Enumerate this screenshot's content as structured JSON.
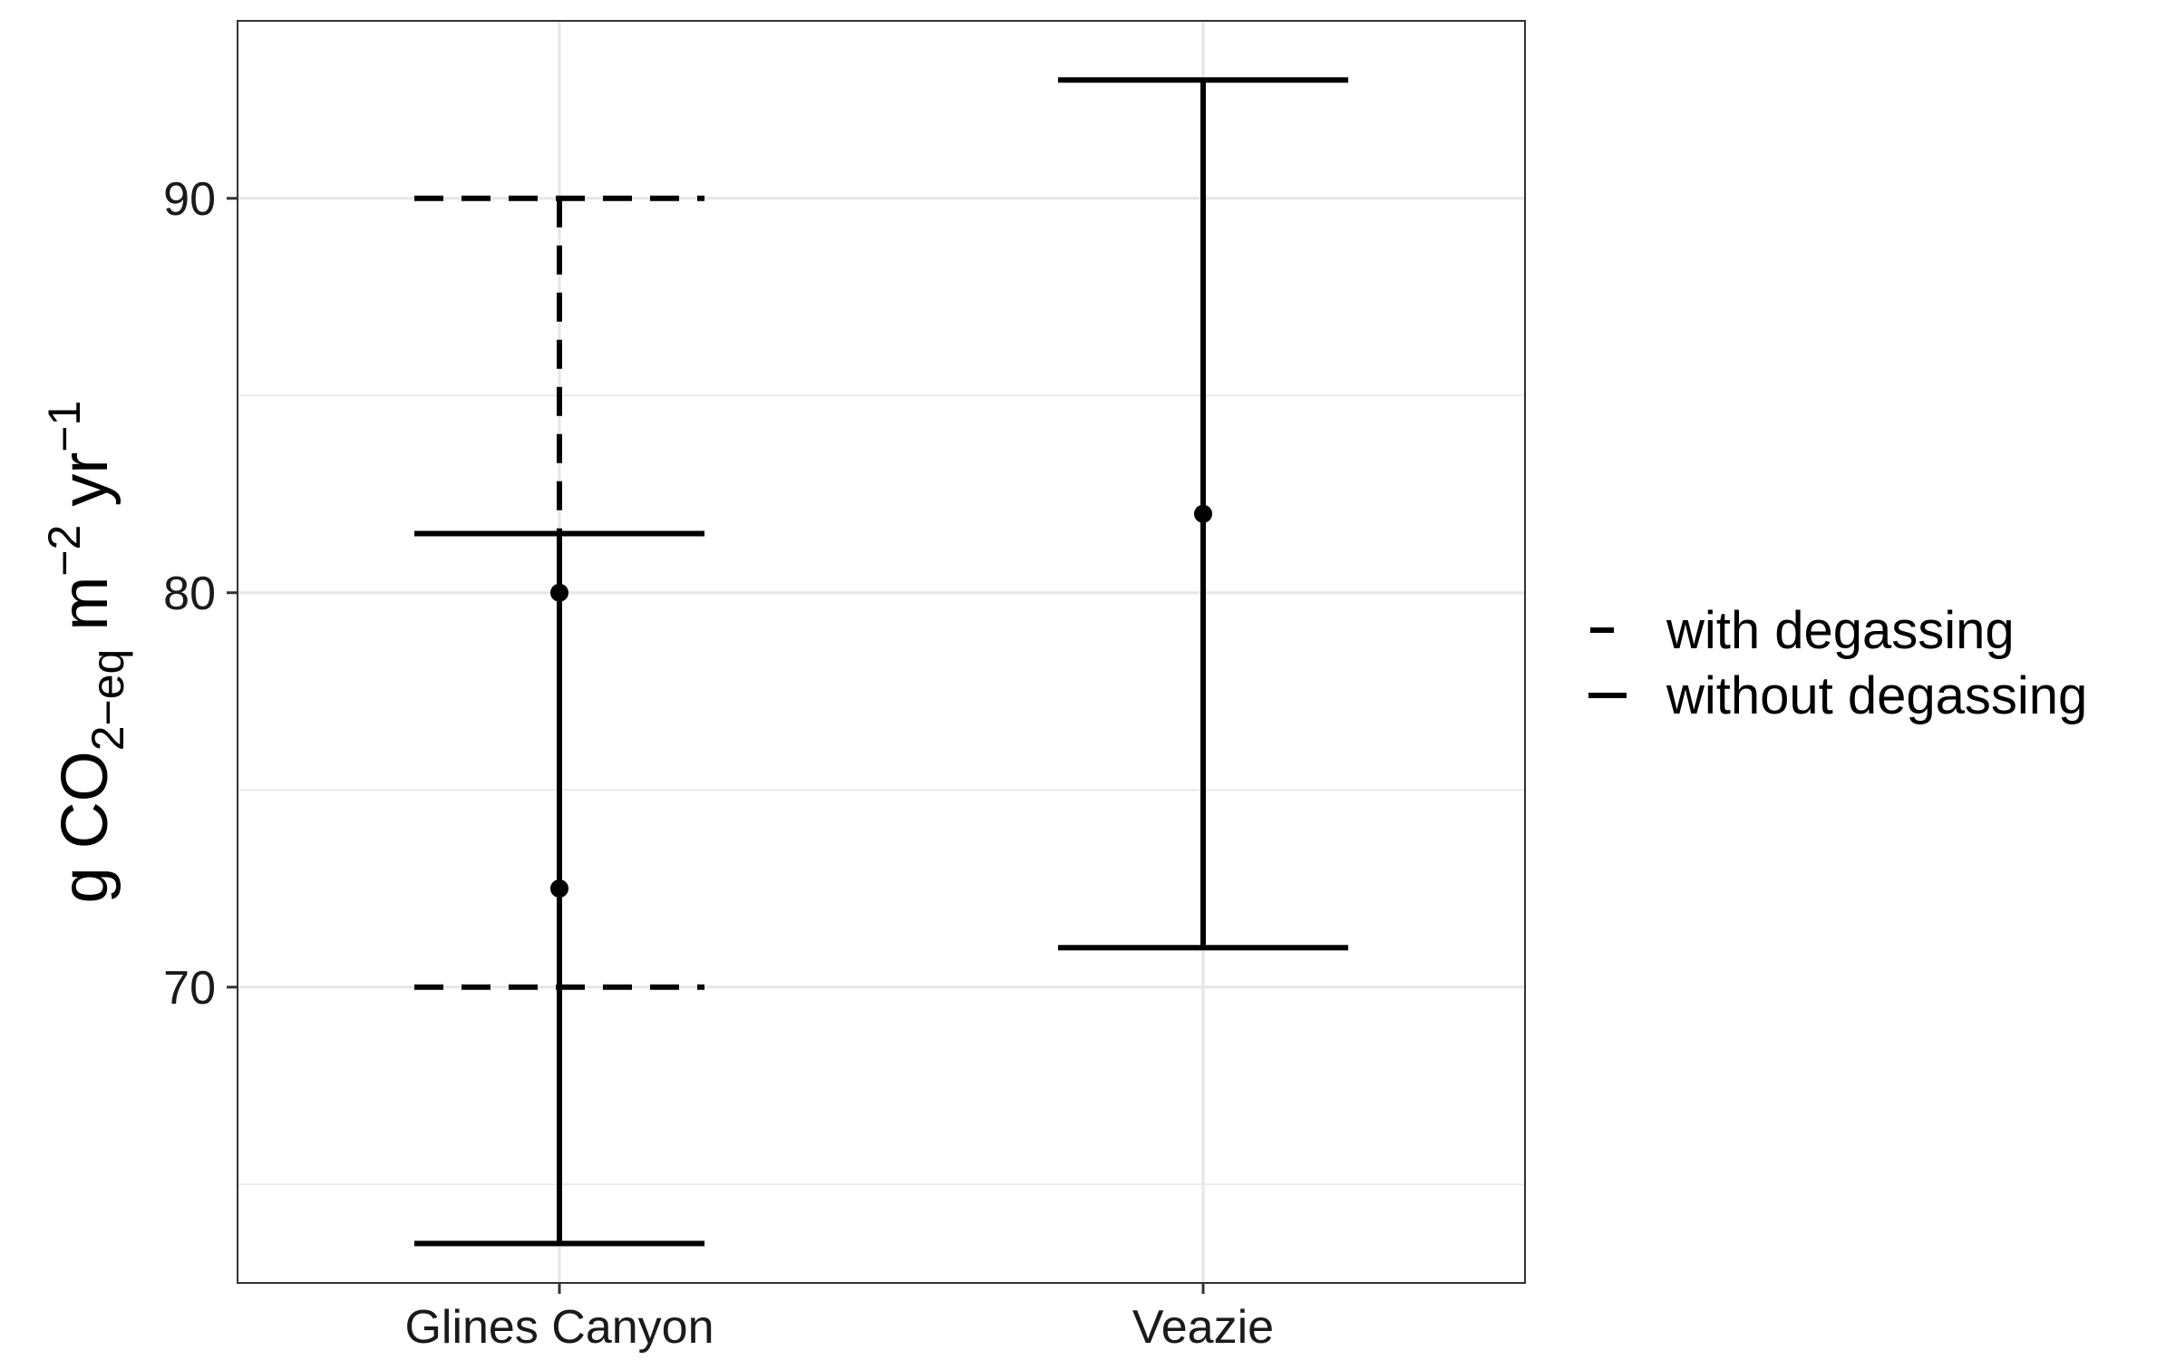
{
  "chart_data": {
    "type": "errorbar",
    "categories": [
      "Glines Canyon",
      "Veazie"
    ],
    "ylim": [
      62.5,
      94.5
    ],
    "yticks": [
      70,
      80,
      90
    ],
    "ylabel": {
      "text": "g CO",
      "sub": "2−eq",
      "mid": " m",
      "sup1": "−2",
      "tail": " yr",
      "sup2": "−1"
    },
    "grid": true,
    "legend_position": "right",
    "series": [
      {
        "name": "with degassing",
        "linestyle": "dashed",
        "points": [
          {
            "category": "Glines Canyon",
            "y": 80,
            "ymin": 70,
            "ymax": 90
          }
        ]
      },
      {
        "name": "without degassing",
        "linestyle": "solid",
        "points": [
          {
            "category": "Glines Canyon",
            "y": 72.5,
            "ymin": 63.5,
            "ymax": 81.5
          },
          {
            "category": "Veazie",
            "y": 82,
            "ymin": 71,
            "ymax": 93
          }
        ]
      }
    ],
    "colors": {
      "line": "#000000",
      "grid": "#e6e6e6",
      "panel_border": "#333333"
    }
  }
}
